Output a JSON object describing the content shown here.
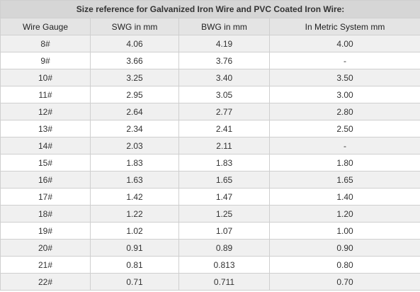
{
  "table": {
    "title": "Size reference for Galvanized Iron Wire and PVC Coated Iron Wire:",
    "columns": [
      "Wire Gauge",
      "SWG in mm",
      "BWG in mm",
      "In Metric System mm"
    ],
    "rows": [
      [
        "8#",
        "4.06",
        "4.19",
        "4.00"
      ],
      [
        "9#",
        "3.66",
        "3.76",
        "-"
      ],
      [
        "10#",
        "3.25",
        "3.40",
        "3.50"
      ],
      [
        "11#",
        "2.95",
        "3.05",
        "3.00"
      ],
      [
        "12#",
        "2.64",
        "2.77",
        "2.80"
      ],
      [
        "13#",
        "2.34",
        "2.41",
        "2.50"
      ],
      [
        "14#",
        "2.03",
        "2.11",
        "-"
      ],
      [
        "15#",
        "1.83",
        "1.83",
        "1.80"
      ],
      [
        "16#",
        "1.63",
        "1.65",
        "1.65"
      ],
      [
        "17#",
        "1.42",
        "1.47",
        "1.40"
      ],
      [
        "18#",
        "1.22",
        "1.25",
        "1.20"
      ],
      [
        "19#",
        "1.02",
        "1.07",
        "1.00"
      ],
      [
        "20#",
        "0.91",
        "0.89",
        "0.90"
      ],
      [
        "21#",
        "0.81",
        "0.813",
        "0.80"
      ],
      [
        "22#",
        "0.71",
        "0.711",
        "0.70"
      ]
    ]
  }
}
